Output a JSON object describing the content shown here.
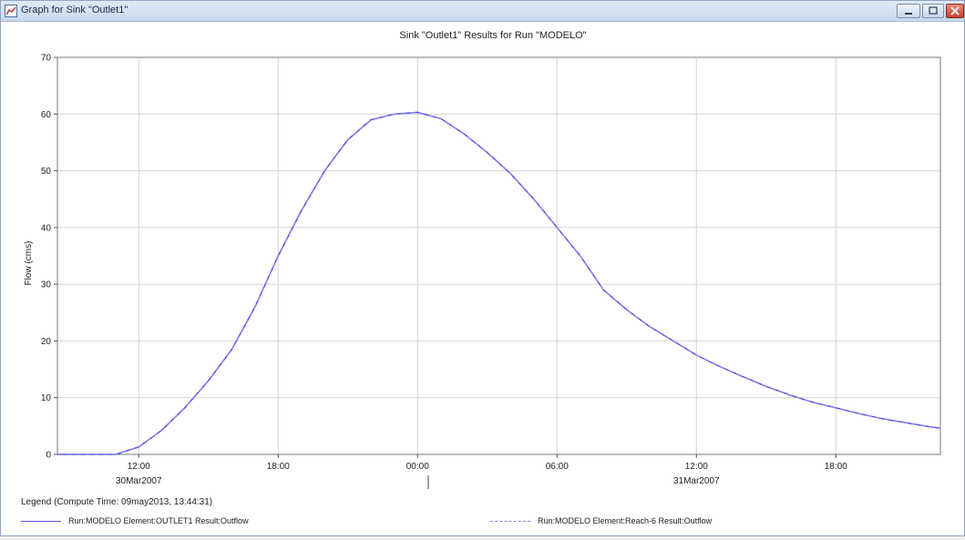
{
  "window": {
    "title": "Graph for Sink \"Outlet1\""
  },
  "chart_data": {
    "type": "line",
    "title": "Sink \"Outlet1\" Results for Run \"MODELO\"",
    "xlabel": "",
    "ylabel": "Flow (cms)",
    "ylim": [
      0,
      70
    ],
    "y_ticks": [
      0,
      10,
      20,
      30,
      40,
      50,
      60,
      70
    ],
    "x_range": [
      "30Mar2007 08:30",
      "31Mar2007 22:30"
    ],
    "x_ticks": [
      {
        "label": "12:00",
        "date_label": "30Mar2007",
        "time": "30Mar2007 12:00"
      },
      {
        "label": "18:00",
        "date_label": "",
        "time": "30Mar2007 18:00"
      },
      {
        "label": "00:00",
        "date_label": "",
        "time": "31Mar2007 00:00"
      },
      {
        "label": "06:00",
        "date_label": "",
        "time": "31Mar2007 06:00"
      },
      {
        "label": "12:00",
        "date_label": "31Mar2007",
        "time": "31Mar2007 12:00"
      },
      {
        "label": "18:00",
        "date_label": "",
        "time": "31Mar2007 18:00"
      }
    ],
    "grid": true,
    "series": [
      {
        "name": "Run:MODELO Element:OUTLET1 Result:Outflow",
        "color": "#5a50e0",
        "style": "solid",
        "x": [
          "30Mar2007 08:30",
          "30Mar2007 09:00",
          "30Mar2007 10:00",
          "30Mar2007 11:00",
          "30Mar2007 12:00",
          "30Mar2007 13:00",
          "30Mar2007 14:00",
          "30Mar2007 15:00",
          "30Mar2007 16:00",
          "30Mar2007 17:00",
          "30Mar2007 18:00",
          "30Mar2007 19:00",
          "30Mar2007 20:00",
          "30Mar2007 21:00",
          "30Mar2007 22:00",
          "30Mar2007 23:00",
          "31Mar2007 00:00",
          "31Mar2007 01:00",
          "31Mar2007 02:00",
          "31Mar2007 03:00",
          "31Mar2007 04:00",
          "31Mar2007 05:00",
          "31Mar2007 06:00",
          "31Mar2007 07:00",
          "31Mar2007 08:00",
          "31Mar2007 09:00",
          "31Mar2007 10:00",
          "31Mar2007 11:00",
          "31Mar2007 12:00",
          "31Mar2007 13:00",
          "31Mar2007 14:00",
          "31Mar2007 15:00",
          "31Mar2007 16:00",
          "31Mar2007 17:00",
          "31Mar2007 18:00",
          "31Mar2007 19:00",
          "31Mar2007 20:00",
          "31Mar2007 21:00",
          "31Mar2007 22:00",
          "31Mar2007 22:30"
        ],
        "y": [
          0,
          0,
          0,
          0,
          1.3,
          4.3,
          8.3,
          13,
          18.5,
          26,
          35,
          43,
          50,
          55.5,
          59,
          60,
          60.3,
          59.2,
          56.5,
          53.2,
          49.5,
          45,
          40,
          35,
          29,
          25.5,
          22.5,
          20,
          17.5,
          15.5,
          13.7,
          12,
          10.5,
          9.2,
          8.2,
          7.2,
          6.3,
          5.6,
          4.9,
          4.6
        ]
      },
      {
        "name": "Run:MODELO Element:Reach-6 Result:Outflow",
        "color": "#8a86e8",
        "style": "dashed",
        "x": [
          "30Mar2007 08:30",
          "30Mar2007 09:00",
          "30Mar2007 10:00",
          "30Mar2007 11:00",
          "30Mar2007 12:00",
          "30Mar2007 13:00",
          "30Mar2007 14:00",
          "30Mar2007 15:00",
          "30Mar2007 16:00",
          "30Mar2007 17:00",
          "30Mar2007 18:00",
          "30Mar2007 19:00",
          "30Mar2007 20:00",
          "30Mar2007 21:00",
          "30Mar2007 22:00",
          "30Mar2007 23:00",
          "31Mar2007 00:00",
          "31Mar2007 01:00",
          "31Mar2007 02:00",
          "31Mar2007 03:00",
          "31Mar2007 04:00",
          "31Mar2007 05:00",
          "31Mar2007 06:00",
          "31Mar2007 07:00",
          "31Mar2007 08:00",
          "31Mar2007 09:00",
          "31Mar2007 10:00",
          "31Mar2007 11:00",
          "31Mar2007 12:00",
          "31Mar2007 13:00",
          "31Mar2007 14:00",
          "31Mar2007 15:00",
          "31Mar2007 16:00",
          "31Mar2007 17:00",
          "31Mar2007 18:00",
          "31Mar2007 19:00",
          "31Mar2007 20:00",
          "31Mar2007 21:00",
          "31Mar2007 22:00",
          "31Mar2007 22:30"
        ],
        "y": [
          0,
          0,
          0,
          0,
          1.3,
          4.3,
          8.3,
          13,
          18.5,
          26,
          35,
          43,
          50,
          55.5,
          59,
          60,
          60.3,
          59.2,
          56.5,
          53.2,
          49.5,
          45,
          40,
          35,
          29,
          25.5,
          22.5,
          20,
          17.5,
          15.5,
          13.7,
          12,
          10.5,
          9.2,
          8.2,
          7.2,
          6.3,
          5.6,
          4.9,
          4.6
        ]
      }
    ]
  },
  "legend": {
    "title": "Legend (Compute Time: 09may2013, 13:44:31)"
  }
}
